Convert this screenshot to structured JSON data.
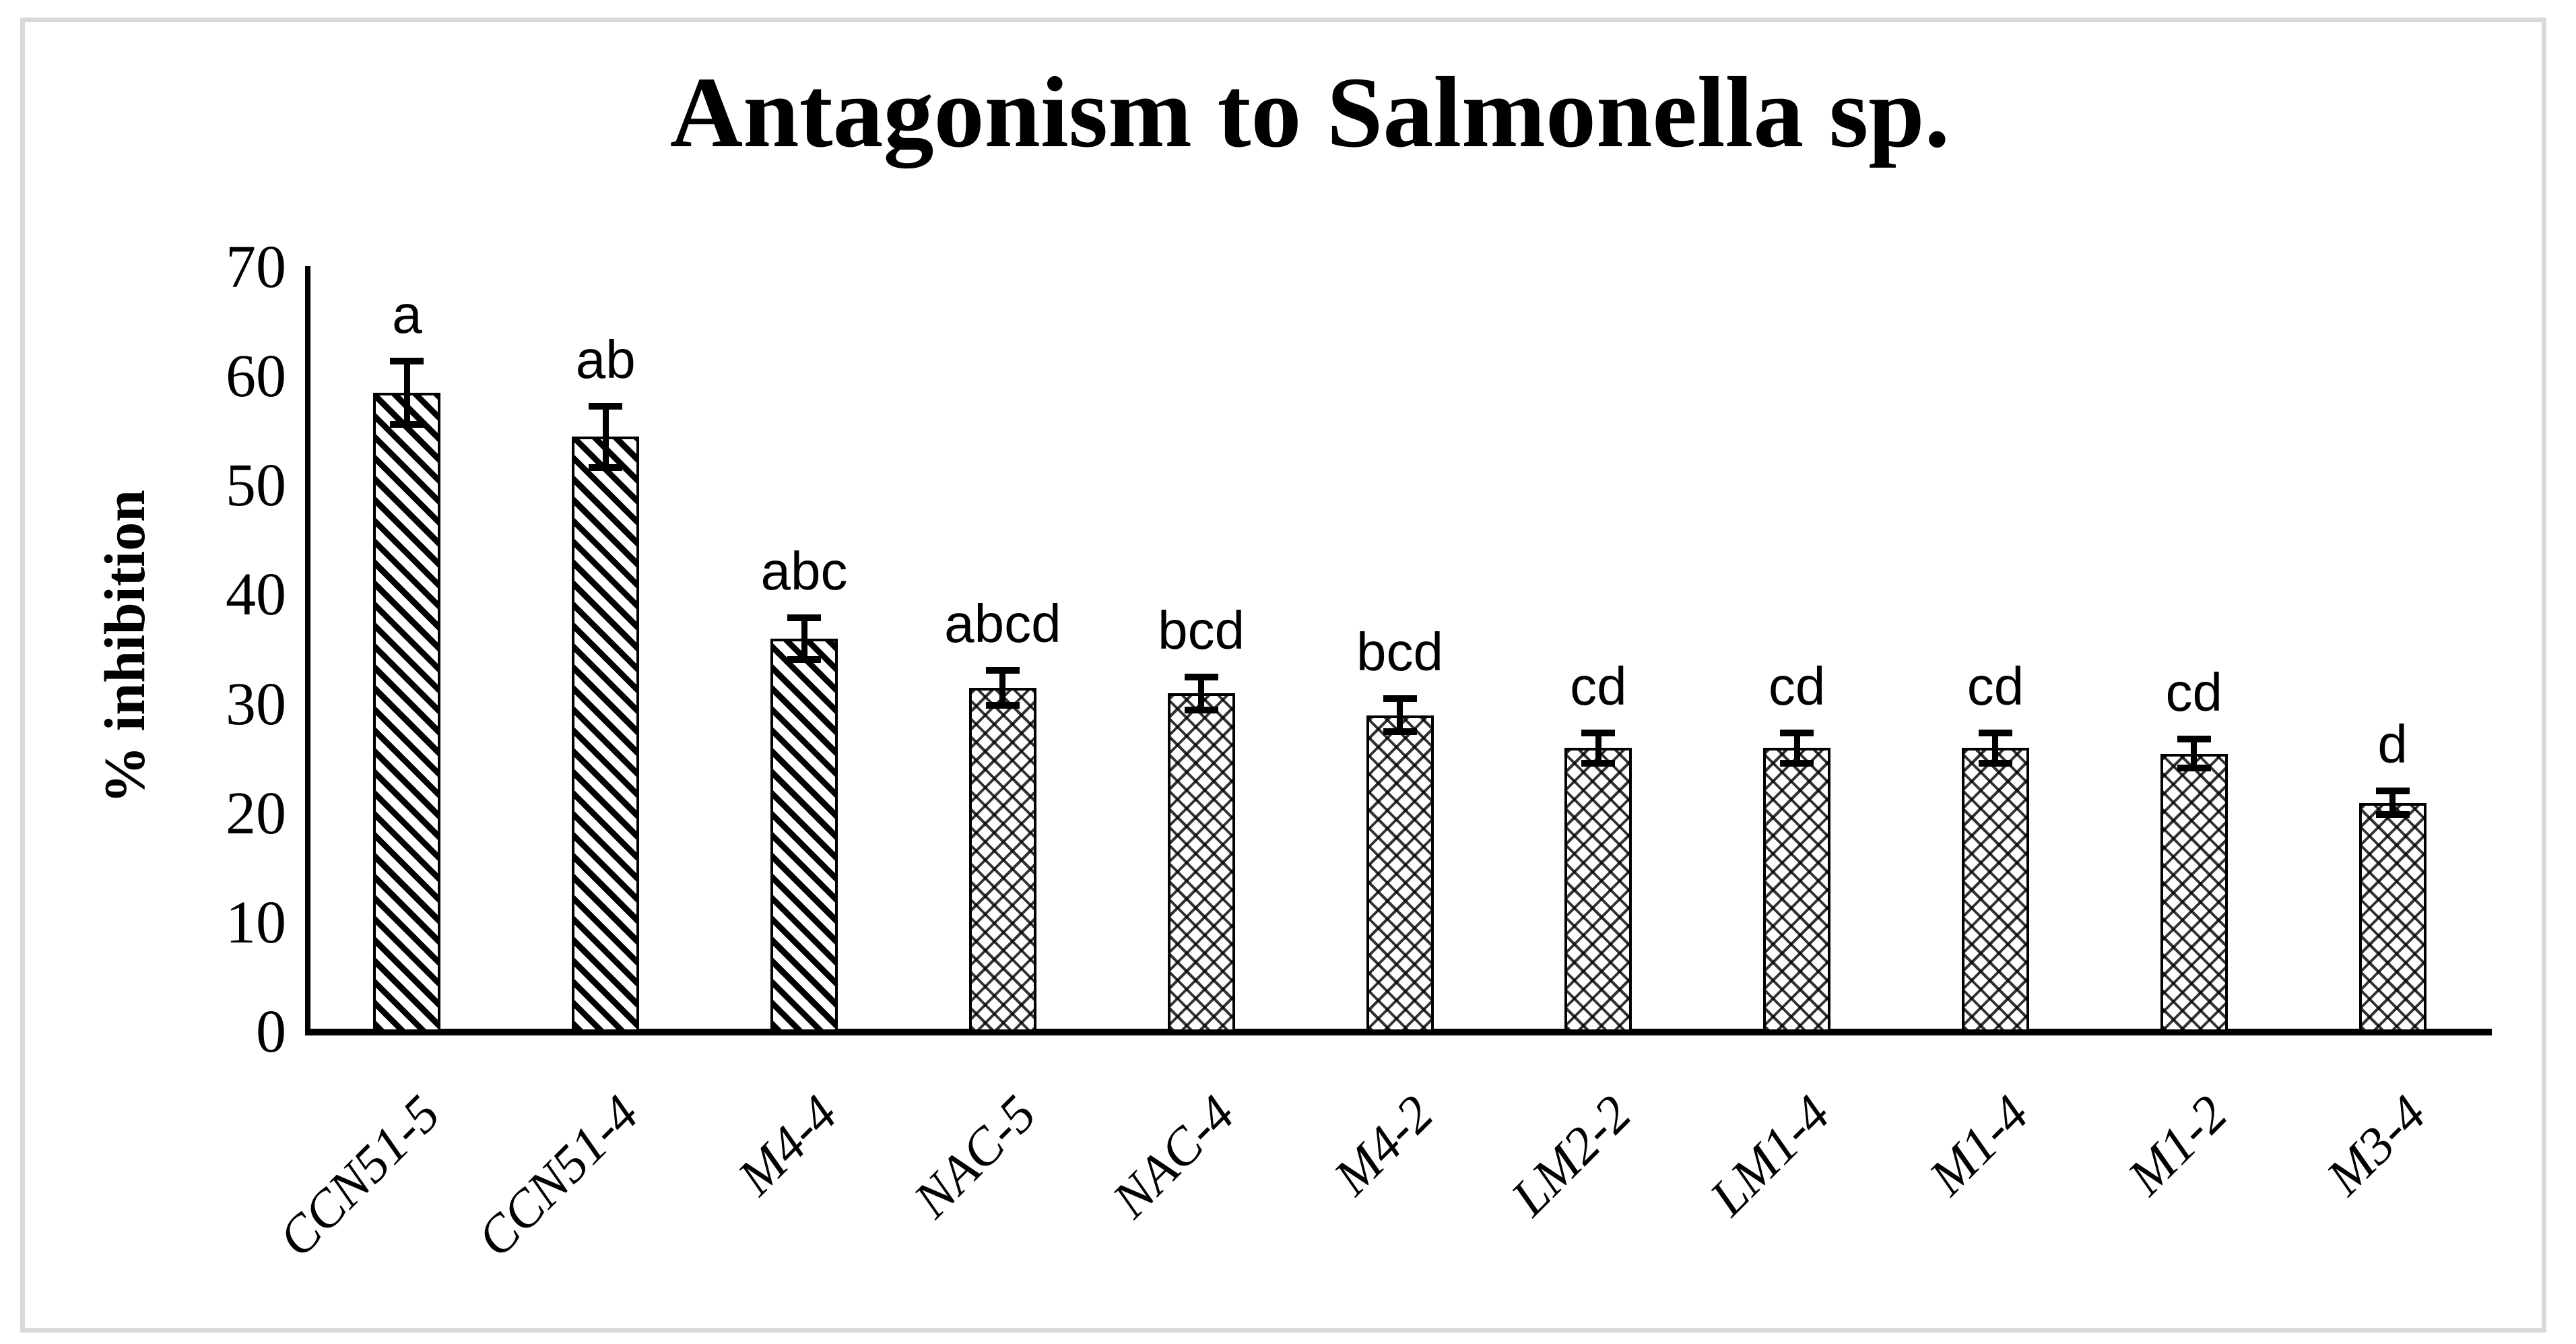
{
  "title": "Antagonism to Salmonella sp.",
  "chart_data": {
    "type": "bar",
    "title": "Antagonism to Salmonella sp.",
    "xlabel": "",
    "ylabel": "% inhibition",
    "ylim": [
      0,
      70
    ],
    "yticks": [
      0,
      10,
      20,
      30,
      40,
      50,
      60,
      70
    ],
    "grid": false,
    "legend": false,
    "categories": [
      "CCN51-5",
      "CCN51-4",
      "M4-4",
      "NAC-5",
      "NAC-4",
      "M4-2",
      "LM2-2",
      "LM1-4",
      "M1-4",
      "M1-2",
      "M3-4"
    ],
    "values": [
      58.5,
      54.5,
      36,
      31.5,
      31,
      29,
      26,
      26,
      26,
      25.5,
      21
    ],
    "error_bars": [
      2.9,
      2.8,
      1.9,
      1.6,
      1.5,
      1.5,
      1.4,
      1.4,
      1.4,
      1.3,
      1.1
    ],
    "significance_letters": [
      "a",
      "ab",
      "abc",
      "abcd",
      "bcd",
      "bcd",
      "cd",
      "cd",
      "cd",
      "cd",
      "d"
    ],
    "bar_patterns": [
      "diagonal",
      "diagonal",
      "diagonal",
      "crosshatch",
      "crosshatch",
      "crosshatch",
      "crosshatch",
      "crosshatch",
      "crosshatch",
      "crosshatch",
      "crosshatch"
    ],
    "bar_fill_color": "#000000",
    "axis_color": "#000000",
    "background_color": "#ffffff",
    "frame_color": "#d9d9d9"
  }
}
